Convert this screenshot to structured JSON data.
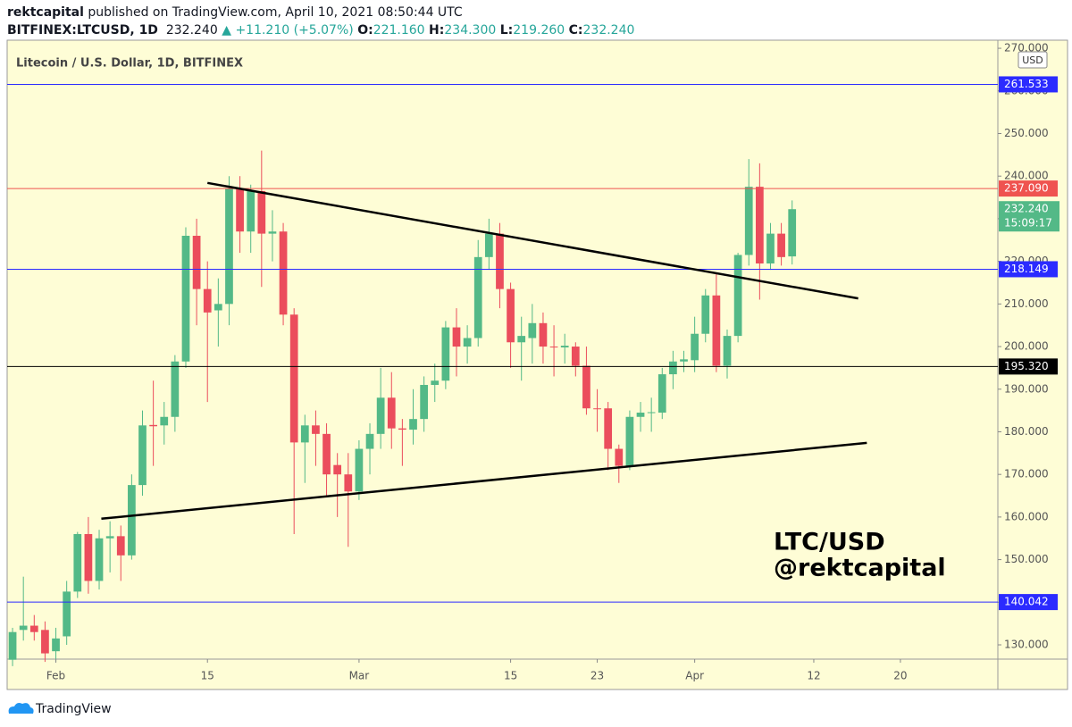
{
  "header": {
    "author": "rektcapital",
    "published": "published on TradingView.com, April 10, 2021 08:50:44 UTC",
    "symbol": "BITFINEX:LTCUSD, 1D",
    "price": "232.240",
    "arrow": "▲",
    "change": "+11.210 (+5.07%)",
    "o_label": "O:",
    "o": "221.160",
    "h_label": "H:",
    "h": "234.300",
    "l_label": "L:",
    "l": "219.260",
    "c_label": "C:",
    "c": "232.240"
  },
  "chart_data": {
    "type": "candlestick",
    "title": "Litecoin / U.S. Dollar, 1D, BITFINEX",
    "y_unit": "USD",
    "up_color": "#53b987",
    "down_color": "#eb4d5c",
    "background": "#fefdd6",
    "open": [
      126.5,
      133.5,
      134.5,
      133.5,
      128.5,
      132,
      142.5,
      156,
      145,
      155,
      155.5,
      151,
      167.5,
      181.6,
      181.5,
      183.5,
      196.5,
      226,
      213.5,
      208.5,
      210,
      237,
      227,
      236.5,
      226.5,
      227,
      207.5,
      177.5,
      181.5,
      179.5,
      172.2,
      170,
      166,
      176,
      179.5,
      188,
      180.8,
      180.5,
      183,
      191,
      192,
      204.5,
      200,
      202,
      221,
      226.5,
      213.5,
      201,
      202,
      205.5,
      200,
      199.8,
      200,
      195.5,
      185.5,
      185.5,
      176,
      172,
      183.5,
      184.5,
      184.5,
      193.5,
      196.5,
      196.8,
      203,
      212,
      195.5,
      202.5,
      221.5,
      237.5,
      219.5,
      226.5,
      221.16
    ],
    "high": [
      134,
      146,
      137,
      135.5,
      134,
      145,
      156.5,
      160,
      157,
      159,
      158,
      170,
      185,
      192,
      187,
      198,
      228,
      230,
      220,
      216,
      240,
      240,
      238,
      246,
      232,
      229,
      209,
      184,
      185,
      182,
      175,
      175,
      178,
      182,
      195,
      194,
      183,
      190,
      193,
      196,
      206,
      209,
      205,
      225,
      230,
      229,
      215,
      207,
      210,
      208,
      205,
      203,
      201,
      200,
      190,
      187,
      177,
      185,
      187,
      188,
      195,
      199,
      199,
      207,
      213.5,
      217,
      204,
      222,
      244,
      243,
      229,
      229,
      234.3
    ],
    "low": [
      125,
      131,
      131,
      126,
      126,
      130,
      141,
      142,
      143,
      147,
      145,
      150,
      165,
      172,
      177,
      180,
      195,
      205,
      187,
      200,
      205,
      222,
      222,
      214,
      220,
      205,
      156,
      168,
      172,
      165,
      160,
      153,
      164,
      170,
      176,
      176,
      172,
      177,
      180,
      187,
      190,
      193,
      196,
      200,
      218,
      209,
      195,
      192,
      196,
      196,
      193,
      196,
      193,
      184,
      180,
      171,
      168,
      171,
      180,
      180,
      183,
      190,
      194,
      194,
      201,
      194,
      192.5,
      201,
      219,
      211,
      218,
      219,
      219.26
    ],
    "close": [
      133,
      134.5,
      133,
      128,
      131.5,
      142.5,
      156,
      145,
      155,
      155.5,
      151,
      167.5,
      181.5,
      181.3,
      183.5,
      196.5,
      226,
      213.5,
      208,
      210,
      237,
      227,
      236.5,
      226.5,
      227,
      207.5,
      177.5,
      181.5,
      179.5,
      170,
      170,
      166,
      176,
      179.5,
      188,
      180.8,
      180.5,
      183,
      191,
      192,
      204.5,
      200,
      202,
      221,
      226.5,
      213.5,
      201,
      202.5,
      205.5,
      200,
      199.9,
      200.2,
      195.5,
      185.5,
      185.3,
      176,
      172,
      183.5,
      184.5,
      184.6,
      193.5,
      196.5,
      197,
      203,
      212,
      195.5,
      202.5,
      221.5,
      237.5,
      219.5,
      226.5,
      221,
      232.24
    ],
    "xlim": [
      -0.5,
      91
    ],
    "xticks": [
      {
        "value": 4,
        "label": "Feb"
      },
      {
        "value": 18,
        "label": "15"
      },
      {
        "value": 32,
        "label": "Mar"
      },
      {
        "value": 46,
        "label": "15"
      },
      {
        "value": 54,
        "label": "23"
      },
      {
        "value": 63,
        "label": "Apr"
      },
      {
        "value": 74,
        "label": "12"
      },
      {
        "value": 82,
        "label": "20"
      }
    ],
    "ylim": [
      126.65,
      271.9
    ],
    "yticks": [
      {
        "value": 130,
        "label": "130.000"
      },
      {
        "value": 140,
        "label": "140.000"
      },
      {
        "value": 150,
        "label": "150.000"
      },
      {
        "value": 160,
        "label": "160.000"
      },
      {
        "value": 170,
        "label": "170.000"
      },
      {
        "value": 180,
        "label": "180.000"
      },
      {
        "value": 190,
        "label": "190.000"
      },
      {
        "value": 200,
        "label": "200.000"
      },
      {
        "value": 210,
        "label": "210.000"
      },
      {
        "value": 220,
        "label": "220.000"
      },
      {
        "value": 230,
        "label": "230.000"
      },
      {
        "value": 240,
        "label": "240.000"
      },
      {
        "value": 250,
        "label": "250.000"
      },
      {
        "value": 260,
        "label": "260.000"
      },
      {
        "value": 270,
        "label": "270.000"
      }
    ],
    "levels": [
      {
        "value": 261.533,
        "label": "261.533",
        "color": "#2b2bff"
      },
      {
        "value": 237.09,
        "label": "237.090",
        "color": "#ef5350"
      },
      {
        "value": 218.149,
        "label": "218.149",
        "color": "#2b2bff"
      },
      {
        "value": 195.32,
        "label": "195.320",
        "color": "#000000"
      },
      {
        "value": 140.042,
        "label": "140.042",
        "color": "#2b2bff"
      }
    ],
    "trendlines": [
      {
        "x": [
          18,
          78.1
        ],
        "y": [
          238.4,
          211.3
        ]
      },
      {
        "x": [
          8.2,
          78.9
        ],
        "y": [
          159.6,
          177.4
        ]
      }
    ],
    "last_price": {
      "value": 232.24,
      "label": "232.240",
      "countdown": "15:09:17"
    },
    "watermark": [
      "LTC/USD",
      "@rektcapital"
    ]
  },
  "footer": {
    "brand": "TradingView"
  }
}
